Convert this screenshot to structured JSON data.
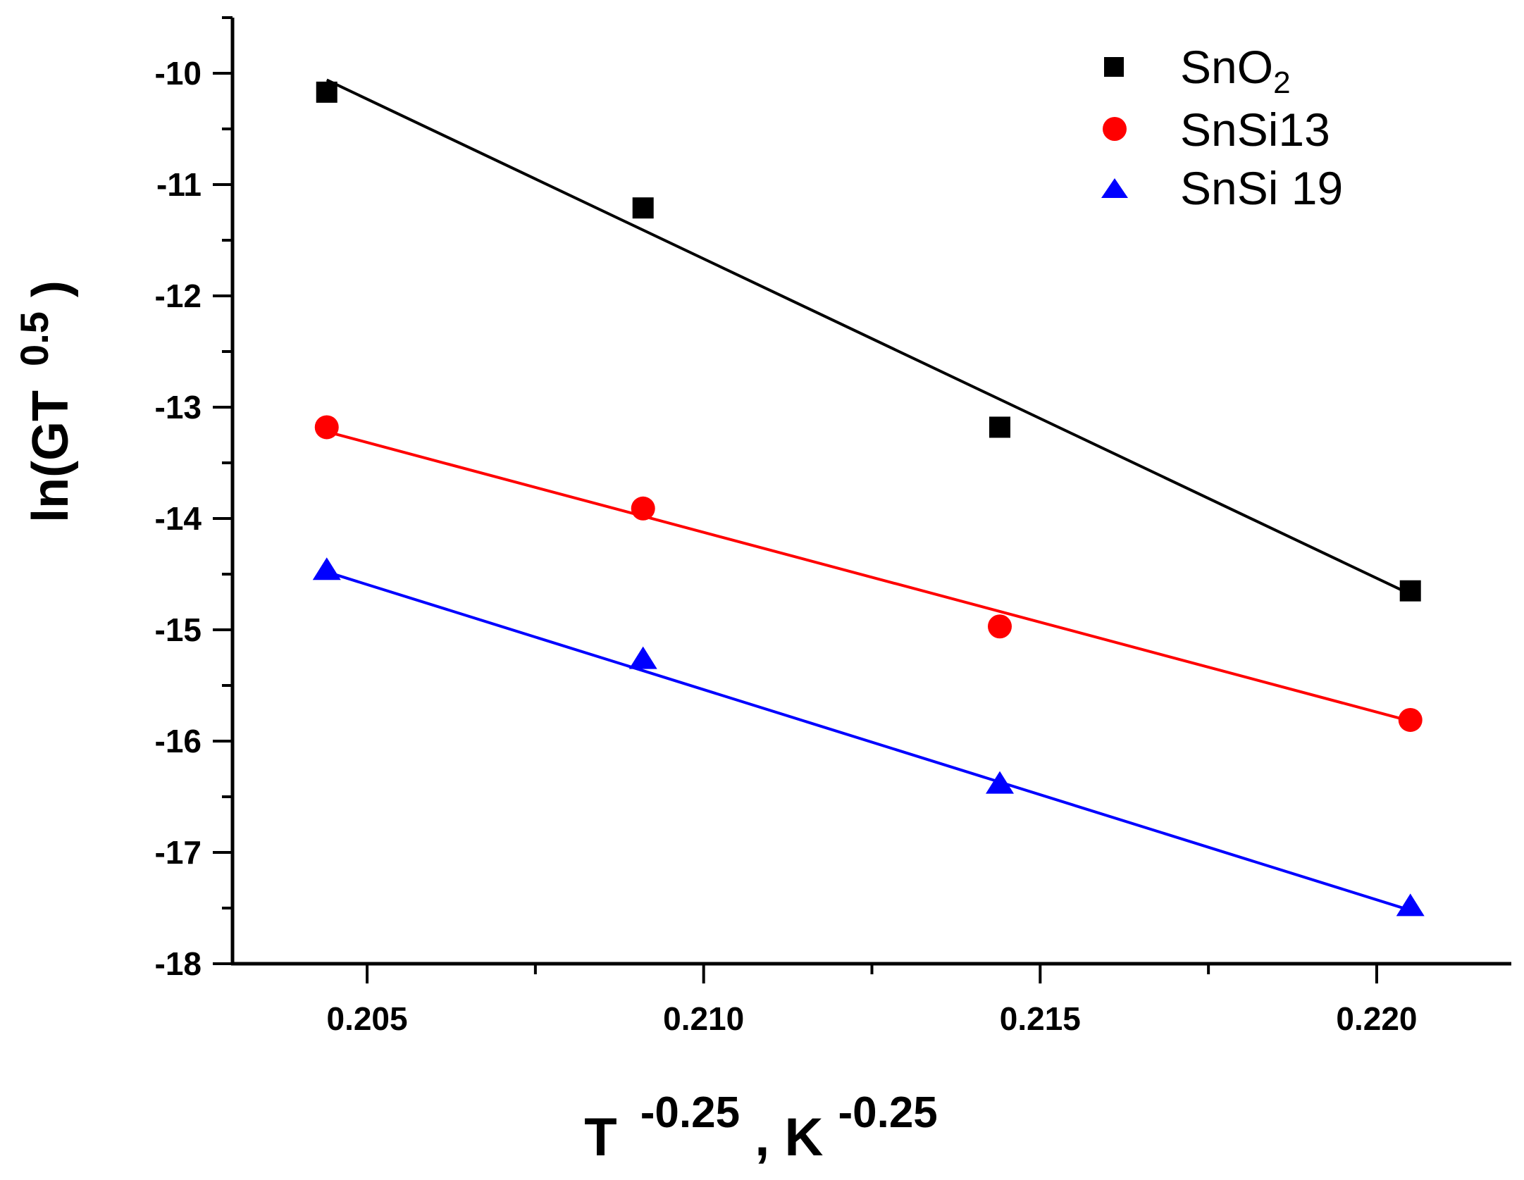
{
  "chart_data": {
    "type": "scatter",
    "title": "",
    "xlabel": {
      "base": "T",
      "sup1": "-0.25",
      "sep": ",",
      "unit": "K",
      "sup2": "-0.25"
    },
    "ylabel": {
      "pre": "ln(GT",
      "sup": "0.5",
      "post": ")"
    },
    "xlim": [
      0.203,
      0.222
    ],
    "ylim": [
      -18,
      -9.5
    ],
    "x_ticks": [
      0.205,
      0.21,
      0.215,
      0.22
    ],
    "x_tick_labels": [
      "0.205",
      "0.210",
      "0.215",
      "0.220"
    ],
    "y_ticks": [
      -18,
      -17,
      -16,
      -15,
      -14,
      -13,
      -12,
      -11,
      -10
    ],
    "y_tick_labels": [
      "-18",
      "-17",
      "-16",
      "-15",
      "-14",
      "-13",
      "-12",
      "-11",
      "-10"
    ],
    "legend_position": "top-right",
    "series": [
      {
        "name": "SnO2",
        "label_main": "SnO",
        "label_sub": "2",
        "marker": "square",
        "color": "#000000",
        "x": [
          0.2044,
          0.2091,
          0.2144,
          0.2205
        ],
        "y": [
          -10.17,
          -11.21,
          -13.18,
          -14.65
        ],
        "fit": {
          "x": [
            0.2044,
            0.2205
          ],
          "y": [
            -10.06,
            -14.68
          ]
        }
      },
      {
        "name": "SnSi13",
        "label_main": "SnSi13",
        "label_sub": "",
        "marker": "circle",
        "color": "#ff0000",
        "x": [
          0.2044,
          0.2091,
          0.2144,
          0.2205
        ],
        "y": [
          -13.18,
          -13.91,
          -14.97,
          -15.81
        ],
        "fit": {
          "x": [
            0.2044,
            0.2205
          ],
          "y": [
            -13.22,
            -15.82
          ]
        }
      },
      {
        "name": "SnSi 19",
        "label_main": "SnSi 19",
        "label_sub": "",
        "marker": "triangle",
        "color": "#0000ff",
        "x": [
          0.2044,
          0.2091,
          0.2144,
          0.2205
        ],
        "y": [
          -14.47,
          -15.27,
          -16.39,
          -17.49
        ],
        "fit": {
          "x": [
            0.2044,
            0.2205
          ],
          "y": [
            -14.48,
            -17.52
          ]
        }
      }
    ]
  }
}
